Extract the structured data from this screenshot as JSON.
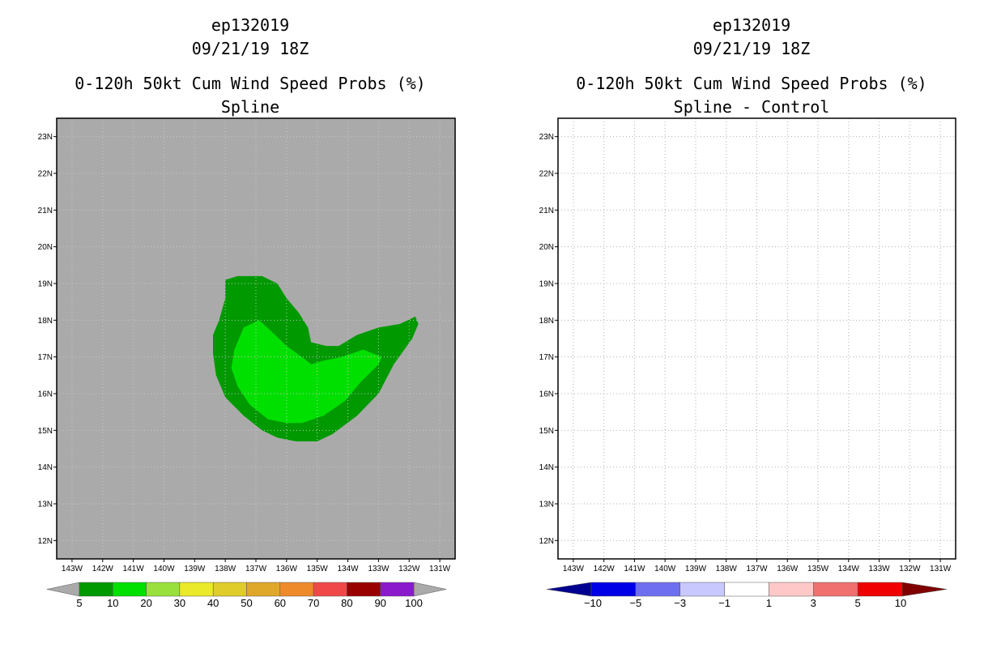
{
  "chart_data": [
    {
      "type": "contour-map",
      "title_lines": [
        "ep132019",
        "09/21/19 18Z",
        "0-120h 50kt Cum Wind Speed Probs (%)",
        "Spline"
      ],
      "x_ticks": [
        "143W",
        "142W",
        "141W",
        "140W",
        "139W",
        "138W",
        "137W",
        "136W",
        "135W",
        "134W",
        "133W",
        "132W",
        "131W"
      ],
      "y_ticks": [
        "23N",
        "22N",
        "21N",
        "20N",
        "19N",
        "18N",
        "17N",
        "16N",
        "15N",
        "14N",
        "13N",
        " 12N"
      ],
      "lon_range": [
        -143.5,
        -130.5
      ],
      "lat_range": [
        11.5,
        23.5
      ],
      "background_color": "#aaaaaa",
      "contours": [
        {
          "level": "5-10",
          "color": "#009900",
          "polygon_lonlat": [
            [
              -138.0,
              19.1
            ],
            [
              -137.6,
              19.2
            ],
            [
              -136.8,
              19.2
            ],
            [
              -136.3,
              19.0
            ],
            [
              -136.0,
              18.6
            ],
            [
              -135.6,
              18.2
            ],
            [
              -135.3,
              17.8
            ],
            [
              -135.2,
              17.4
            ],
            [
              -134.7,
              17.3
            ],
            [
              -134.3,
              17.3
            ],
            [
              -133.7,
              17.6
            ],
            [
              -133.0,
              17.8
            ],
            [
              -132.3,
              17.9
            ],
            [
              -131.8,
              18.1
            ],
            [
              -131.7,
              17.9
            ],
            [
              -131.9,
              17.5
            ],
            [
              -132.5,
              16.8
            ],
            [
              -133.0,
              16.0
            ],
            [
              -133.7,
              15.4
            ],
            [
              -134.5,
              14.9
            ],
            [
              -135.0,
              14.7
            ],
            [
              -135.7,
              14.7
            ],
            [
              -136.3,
              14.8
            ],
            [
              -136.8,
              15.0
            ],
            [
              -137.4,
              15.4
            ],
            [
              -138.0,
              15.9
            ],
            [
              -138.3,
              16.5
            ],
            [
              -138.4,
              17.1
            ],
            [
              -138.4,
              17.6
            ],
            [
              -138.2,
              18.0
            ],
            [
              -138.0,
              18.6
            ]
          ]
        },
        {
          "level": "10-20",
          "color": "#00e000",
          "polygon_lonlat": [
            [
              -137.4,
              17.8
            ],
            [
              -136.9,
              18.0
            ],
            [
              -136.5,
              17.7
            ],
            [
              -136.0,
              17.3
            ],
            [
              -135.5,
              17.0
            ],
            [
              -135.2,
              16.8
            ],
            [
              -134.8,
              16.9
            ],
            [
              -134.2,
              17.0
            ],
            [
              -133.5,
              17.2
            ],
            [
              -132.9,
              17.0
            ],
            [
              -133.0,
              16.8
            ],
            [
              -133.6,
              16.3
            ],
            [
              -134.1,
              15.8
            ],
            [
              -134.8,
              15.4
            ],
            [
              -135.5,
              15.2
            ],
            [
              -136.0,
              15.2
            ],
            [
              -136.6,
              15.3
            ],
            [
              -137.2,
              15.7
            ],
            [
              -137.6,
              16.2
            ],
            [
              -137.8,
              16.7
            ],
            [
              -137.7,
              17.2
            ]
          ]
        }
      ],
      "colorbar": {
        "labels": [
          "5",
          "10",
          "20",
          "30",
          "40",
          "50",
          "60",
          "70",
          "80",
          "90",
          "100"
        ],
        "colors": [
          "#009900",
          "#00e000",
          "#99e03c",
          "#eaea2a",
          "#e0cc2a",
          "#e0a82a",
          "#ef8a2a",
          "#f04848",
          "#990000",
          "#8a1acc"
        ],
        "under_color": "#aaaaaa",
        "over_color": "#aaaaaa"
      }
    },
    {
      "type": "contour-map",
      "title_lines": [
        "ep132019",
        "09/21/19 18Z",
        "0-120h 50kt Cum Wind Speed Probs (%)",
        "Spline - Control"
      ],
      "x_ticks": [
        "143W",
        "142W",
        "141W",
        "140W",
        "139W",
        "138W",
        "137W",
        "136W",
        "135W",
        "134W",
        "133W",
        "132W",
        "131W"
      ],
      "y_ticks": [
        "23N",
        "22N",
        "21N",
        "20N",
        "19N",
        "18N",
        "17N",
        "16N",
        "15N",
        "14N",
        "13N",
        " 12N"
      ],
      "lon_range": [
        -143.5,
        -130.5
      ],
      "lat_range": [
        11.5,
        23.5
      ],
      "background_color": "#ffffff",
      "grid": true,
      "contours": [],
      "colorbar": {
        "labels": [
          "-10",
          "-5",
          "-3",
          "-1",
          "1",
          "3",
          "5",
          "10"
        ],
        "colors": [
          "#0000e6",
          "#6e6ef0",
          "#c8c8ff",
          "#ffffff",
          "#ffc8c8",
          "#f07070",
          "#f00000"
        ],
        "under_color": "#000090",
        "over_color": "#800000"
      }
    }
  ]
}
